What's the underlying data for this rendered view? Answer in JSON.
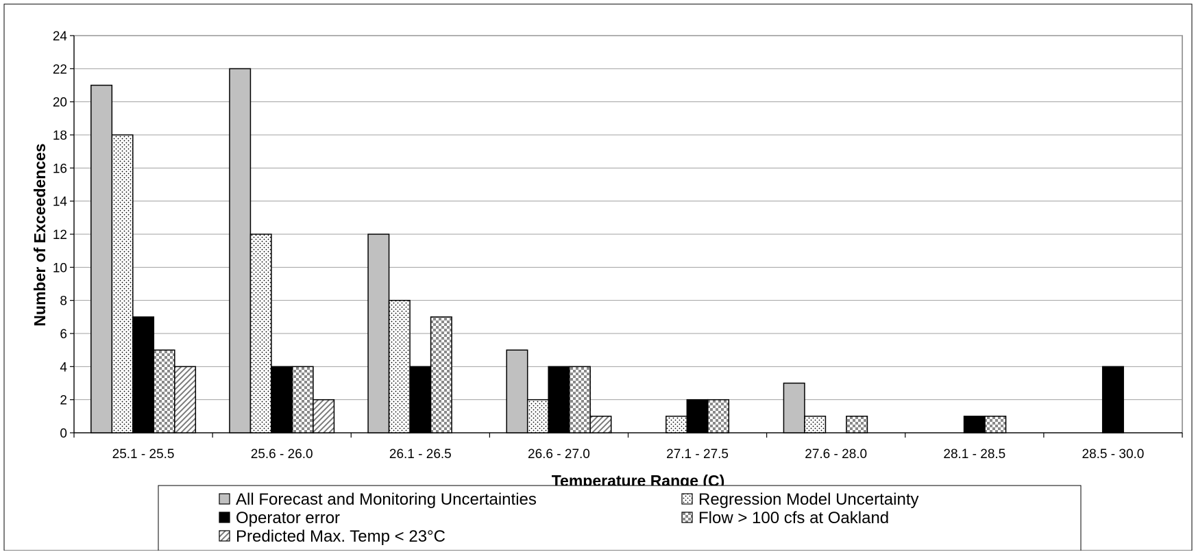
{
  "chart_data": {
    "type": "bar",
    "title": "",
    "xlabel": "Temperature Range (C)",
    "ylabel": "Number of Exceedences",
    "ylim": [
      0,
      24
    ],
    "yticks": [
      0,
      2,
      4,
      6,
      8,
      10,
      12,
      14,
      16,
      18,
      20,
      22,
      24
    ],
    "grid": true,
    "legend_position": "bottom",
    "categories": [
      "25.1 - 25.5",
      "25.6 - 26.0",
      "26.1 - 26.5",
      "26.6 - 27.0",
      "27.1 - 27.5",
      "27.6 - 28.0",
      "28.1 - 28.5",
      "28.5 - 30.0"
    ],
    "series": [
      {
        "name": "All Forecast and Monitoring Uncertainties",
        "pattern": "solid-gray",
        "values": [
          21,
          22,
          12,
          5,
          0,
          3,
          0,
          0
        ]
      },
      {
        "name": "Regression Model Uncertainty",
        "pattern": "dots",
        "values": [
          18,
          12,
          8,
          2,
          1,
          1,
          0,
          0
        ]
      },
      {
        "name": "Operator error",
        "pattern": "solid-black",
        "values": [
          7,
          4,
          4,
          4,
          2,
          0,
          1,
          4
        ]
      },
      {
        "name": "Flow > 100 cfs at Oakland",
        "pattern": "checker",
        "values": [
          5,
          4,
          7,
          4,
          2,
          1,
          1,
          0
        ]
      },
      {
        "name": "Predicted Max. Temp < 23°C",
        "pattern": "diagonal",
        "values": [
          4,
          2,
          0,
          1,
          0,
          0,
          0,
          0
        ]
      }
    ],
    "colors": {
      "gray": "#c0c0c0",
      "black": "#000000",
      "grid": "#a0a0a0",
      "background": "#ffffff"
    }
  }
}
